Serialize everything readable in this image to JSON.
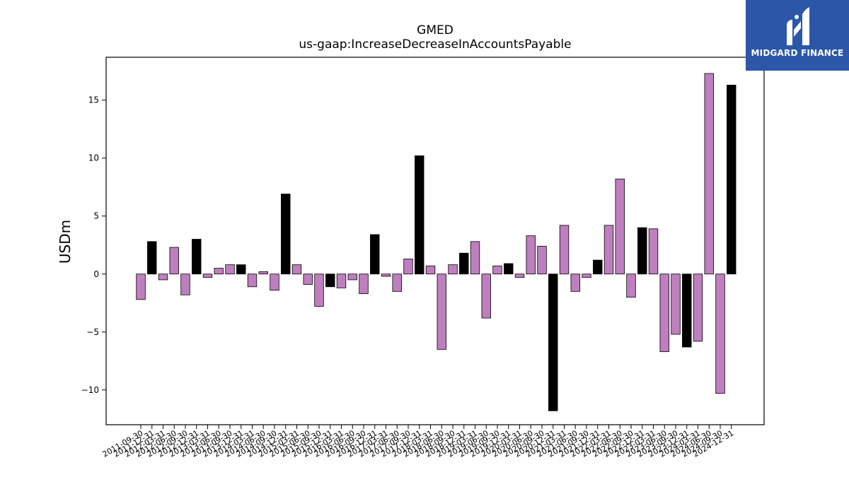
{
  "chart_data": {
    "type": "bar",
    "title": "GMED",
    "subtitle": "us-gaap:IncreaseDecreaseInAccountsPayable",
    "ylabel": "USDm",
    "xlabel": "",
    "ylim": [
      -13,
      18.7
    ],
    "yticks": [
      -10,
      -5,
      0,
      5,
      10,
      15
    ],
    "ytick_labels": [
      "−10",
      "−5",
      "0",
      "5",
      "10",
      "15"
    ],
    "grid": false,
    "colors": {
      "quarter": "#bf7fbf",
      "year_end": "#000000"
    },
    "categories": [
      "2011-09-30",
      "2011-12-31",
      "2012-03-31",
      "2012-06-30",
      "2012-09-30",
      "2012-12-31",
      "2013-03-31",
      "2013-06-30",
      "2013-09-30",
      "2013-12-31",
      "2014-03-31",
      "2014-06-30",
      "2014-09-30",
      "2014-12-31",
      "2015-03-31",
      "2015-06-30",
      "2015-09-30",
      "2015-12-31",
      "2016-03-31",
      "2016-06-30",
      "2016-09-30",
      "2016-12-31",
      "2017-03-31",
      "2017-06-30",
      "2017-09-30",
      "2017-12-31",
      "2018-03-31",
      "2018-06-30",
      "2018-09-30",
      "2018-12-31",
      "2019-03-31",
      "2019-06-30",
      "2019-09-30",
      "2019-12-31",
      "2020-03-31",
      "2020-06-30",
      "2020-09-30",
      "2020-12-31",
      "2021-03-31",
      "2021-06-30",
      "2021-09-30",
      "2021-12-31",
      "2022-03-31",
      "2022-06-30",
      "2022-09-30",
      "2022-12-31",
      "2023-03-31",
      "2023-06-30",
      "2023-09-30",
      "2023-12-31",
      "2024-03-31",
      "2024-06-30",
      "2024-09-30",
      "2024-12-31"
    ],
    "values": [
      -2.2,
      2.8,
      -0.5,
      2.3,
      -1.8,
      3.0,
      -0.3,
      0.5,
      0.8,
      0.8,
      -1.1,
      0.2,
      -1.4,
      6.9,
      0.8,
      -0.9,
      -2.8,
      -1.1,
      -1.2,
      -0.5,
      -1.7,
      3.4,
      -0.2,
      -1.5,
      1.3,
      10.2,
      0.7,
      -6.5,
      0.8,
      1.8,
      2.8,
      -3.8,
      0.7,
      0.9,
      -0.3,
      3.3,
      2.4,
      -11.8,
      4.2,
      -1.5,
      -0.3,
      1.2,
      4.2,
      8.2,
      -2.0,
      4.0,
      3.9,
      -6.7,
      -5.2,
      -6.3,
      -5.8,
      17.3,
      -10.3,
      16.3
    ],
    "year_end": [
      false,
      true,
      false,
      false,
      false,
      true,
      false,
      false,
      false,
      true,
      false,
      false,
      false,
      true,
      false,
      false,
      false,
      true,
      false,
      false,
      false,
      true,
      false,
      false,
      false,
      true,
      false,
      false,
      false,
      true,
      false,
      false,
      false,
      true,
      false,
      false,
      false,
      true,
      false,
      false,
      false,
      true,
      false,
      false,
      false,
      true,
      false,
      false,
      false,
      true,
      false,
      false,
      false,
      true
    ]
  },
  "logo": {
    "text": "MIDGARD FINANCE",
    "icon": "midgard-logo-icon"
  }
}
